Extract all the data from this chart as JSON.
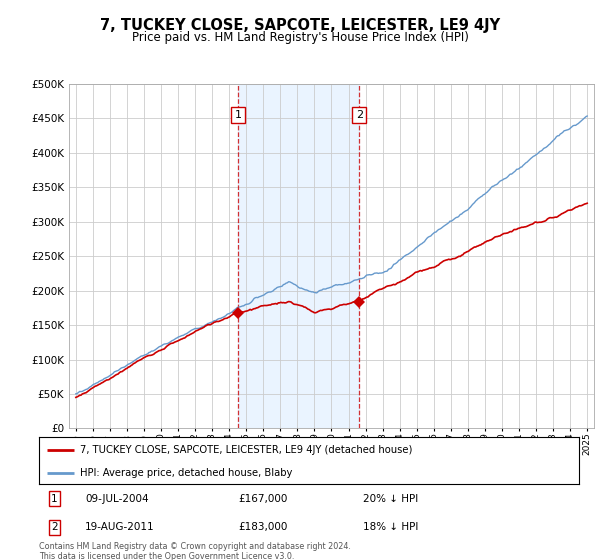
{
  "title": "7, TUCKEY CLOSE, SAPCOTE, LEICESTER, LE9 4JY",
  "subtitle": "Price paid vs. HM Land Registry's House Price Index (HPI)",
  "ylim": [
    0,
    500000
  ],
  "yticks": [
    0,
    50000,
    100000,
    150000,
    200000,
    250000,
    300000,
    350000,
    400000,
    450000,
    500000
  ],
  "sale1_date": "09-JUL-2004",
  "sale1_price": 167000,
  "sale1_hpi_pct": "20% ↓ HPI",
  "sale2_date": "19-AUG-2011",
  "sale2_price": 183000,
  "sale2_hpi_pct": "18% ↓ HPI",
  "legend_red": "7, TUCKEY CLOSE, SAPCOTE, LEICESTER, LE9 4JY (detached house)",
  "legend_blue": "HPI: Average price, detached house, Blaby",
  "footer": "Contains HM Land Registry data © Crown copyright and database right 2024.\nThis data is licensed under the Open Government Licence v3.0.",
  "sale1_x": 2004.52,
  "sale2_x": 2011.63,
  "red_color": "#cc0000",
  "blue_color": "#6699cc",
  "shade_color": "#ddeeff",
  "vline_color": "#cc0000",
  "marker_color": "#cc0000",
  "box_color": "#cc0000",
  "xstart": 1995,
  "xend": 2025
}
